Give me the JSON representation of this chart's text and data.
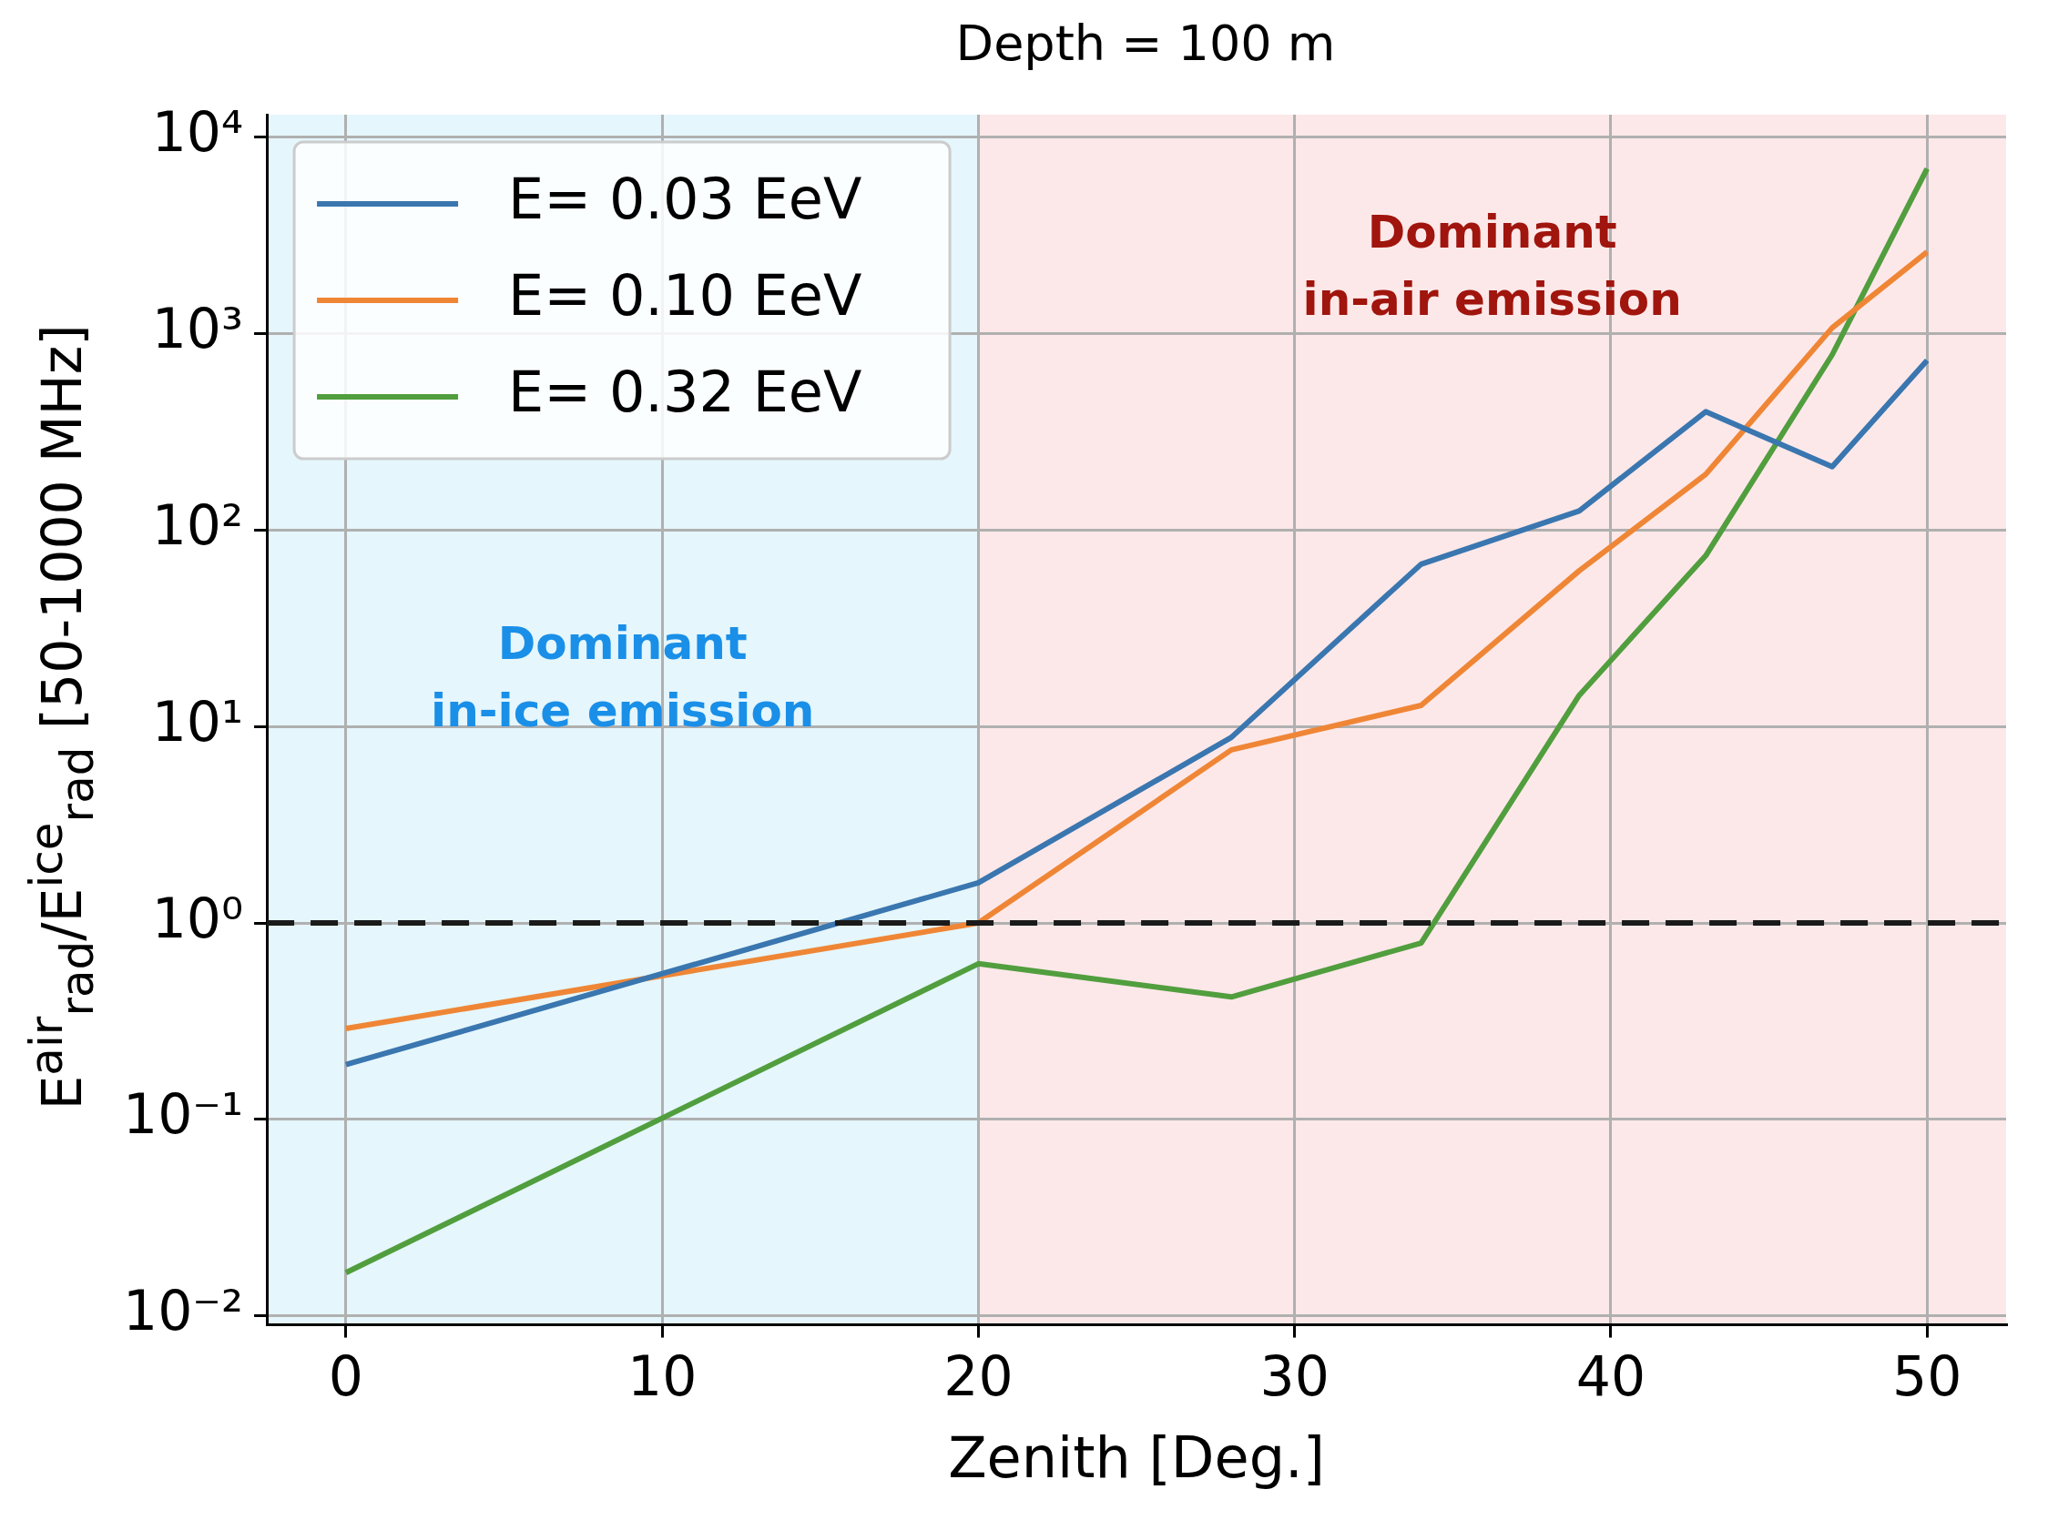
{
  "chart_data": {
    "type": "line",
    "title": "Depth = 100 m",
    "xlabel": "Zenith [Deg.]",
    "ylabel": "E$^{air}$$_{rad}$/E$^{ice}$$_{rad}$ [50-1000 MHz]",
    "x": [
      0,
      20,
      28,
      34,
      39,
      43,
      47,
      50
    ],
    "series": [
      {
        "name": "E= 0.03 EeV",
        "color": "#3a76af",
        "values": [
          0.19,
          1.6,
          8.8,
          67,
          125,
          400,
          210,
          730
        ]
      },
      {
        "name": "E= 0.10 EeV",
        "color": "#ef8636",
        "values": [
          0.29,
          1,
          7.6,
          12.8,
          62,
          192,
          1070,
          2600
        ]
      },
      {
        "name": "E= 0.32 EeV",
        "color": "#519e3e",
        "values": [
          0.0166,
          0.62,
          0.42,
          0.79,
          14.4,
          74,
          780,
          6900
        ]
      }
    ],
    "log": "y",
    "xlim": [
      -2.5,
      52.5
    ],
    "ylim": [
      0.009,
      13000
    ],
    "xticks": [
      0,
      10,
      20,
      30,
      40,
      50
    ],
    "yticks": [
      {
        "value": 0.01,
        "label": "10⁻²"
      },
      {
        "value": 0.1,
        "label": "10⁻¹"
      },
      {
        "value": 1,
        "label": "10⁰"
      },
      {
        "value": 10,
        "label": "10¹"
      },
      {
        "value": 100,
        "label": "10²"
      },
      {
        "value": 1000,
        "label": "10³"
      },
      {
        "value": 10000,
        "label": "10⁴"
      }
    ],
    "bands": [
      {
        "axis": "x",
        "from": -2.5,
        "to": 20,
        "label": "Dominant\nin-ice emission",
        "color": "#e5f6fc"
      },
      {
        "axis": "x",
        "from": 20,
        "to": 52.5,
        "label": "Dominant\nin-air emission",
        "color": "#fde8e9"
      }
    ],
    "ref_lines": [
      {
        "axis": "y",
        "value": 1,
        "color": "#1a1a1a",
        "line_style": "dashed"
      }
    ],
    "grid": true,
    "legend": "top left",
    "marker": "none",
    "line_style": "solid"
  }
}
